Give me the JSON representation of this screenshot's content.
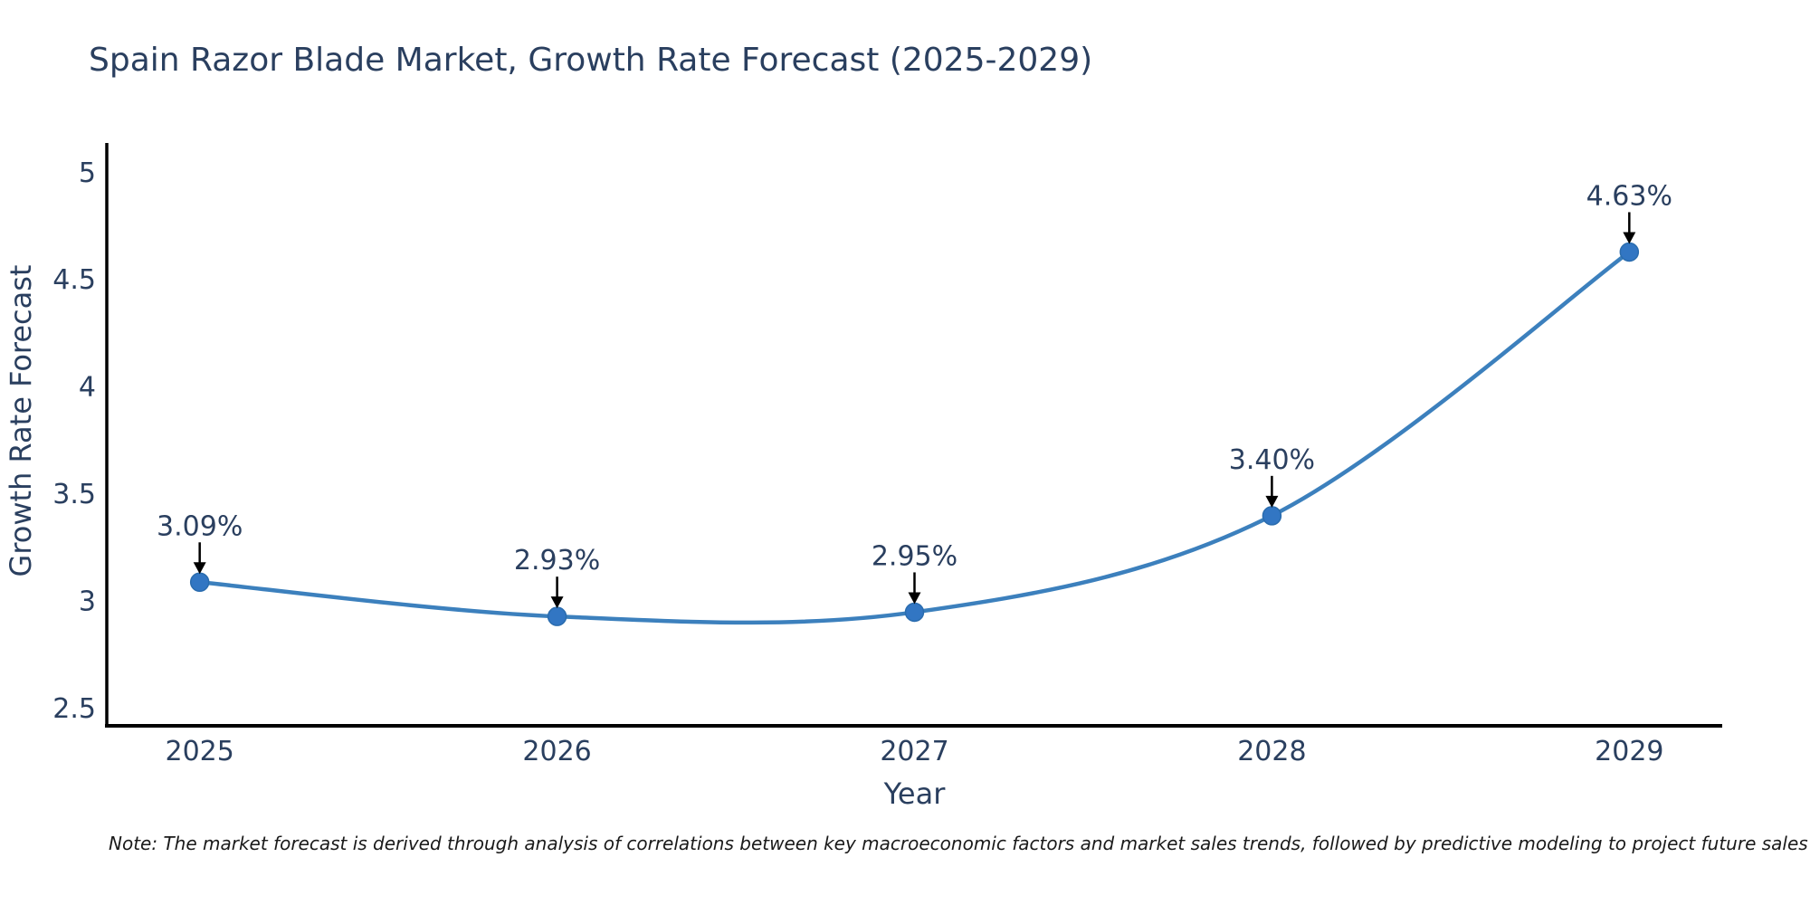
{
  "note": "Note: The market forecast is derived through analysis of correlations between key macroeconomic factors and market sales trends, followed by predictive modeling to project future sales",
  "chart_data": {
    "type": "line",
    "title": "Spain Razor Blade Market, Growth Rate Forecast (2025-2029)",
    "x": [
      2025,
      2026,
      2027,
      2028,
      2029
    ],
    "values": [
      3.09,
      2.93,
      2.95,
      3.4,
      4.63
    ],
    "point_labels": [
      "3.09%",
      "2.93%",
      "2.95%",
      "3.40%",
      "4.63%"
    ],
    "xlabel": "Year",
    "ylabel": "Growth Rate Forecast",
    "xtick_labels": [
      "2025",
      "2026",
      "2027",
      "2028",
      "2029"
    ],
    "yticks": [
      2.5,
      3,
      3.5,
      4,
      4.5,
      5
    ],
    "ytick_labels": [
      "2.5",
      "3",
      "3.5",
      "4",
      "4.5",
      "5"
    ],
    "xlim": [
      2024.74,
      2029.26
    ],
    "ylim": [
      2.42,
      5.13
    ],
    "grid": false,
    "legend_position": "none",
    "line_shape": "spline",
    "colors": {
      "line": "#3c80bd",
      "marker_fill": "#3276c3",
      "marker_edge": "#2a6cae",
      "chart_text": "#2a3f5f",
      "axis_line": "#000000",
      "arrow": "#000000",
      "note_text": "#1a1a1a",
      "background": "#ffffff"
    }
  }
}
